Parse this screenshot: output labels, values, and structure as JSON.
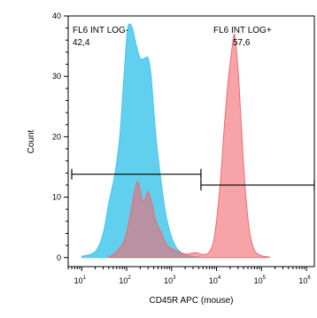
{
  "chart_data": {
    "type": "area",
    "title": "",
    "xlabel": "CD45R APC (mouse)",
    "ylabel": "Count",
    "x_scale": "log",
    "xlim": [
      5,
      1500000
    ],
    "ylim": [
      -1.5,
      40
    ],
    "y_ticks": [
      0,
      10,
      20,
      30,
      40
    ],
    "y_tick_labels": [
      "0",
      "10",
      "20",
      "30",
      "40"
    ],
    "x_ticks": [
      {
        "base": "10",
        "exp": "1",
        "value": 10
      },
      {
        "base": "10",
        "exp": "2",
        "value": 100
      },
      {
        "base": "10",
        "exp": "3",
        "value": 1000
      },
      {
        "base": "10",
        "exp": "4",
        "value": 10000
      },
      {
        "base": "10",
        "exp": "5",
        "value": 100000
      },
      {
        "base": "10",
        "exp": "6",
        "value": 1000000
      }
    ],
    "grid": false,
    "series": [
      {
        "color": "#45c8ec",
        "points": [
          [
            10,
            0.2
          ],
          [
            20,
            1.0
          ],
          [
            30,
            4.0
          ],
          [
            40,
            9.0
          ],
          [
            55,
            14.0
          ],
          [
            70,
            20.0
          ],
          [
            85,
            29.0
          ],
          [
            100,
            36.5
          ],
          [
            110,
            38.5
          ],
          [
            125,
            38.5
          ],
          [
            140,
            37.5
          ],
          [
            160,
            35.5
          ],
          [
            200,
            33.0
          ],
          [
            250,
            33.0
          ],
          [
            300,
            33.0
          ],
          [
            350,
            30.0
          ],
          [
            450,
            20.0
          ],
          [
            600,
            12.0
          ],
          [
            800,
            6.0
          ],
          [
            1200,
            2.0
          ],
          [
            2000,
            0.5
          ],
          [
            4000,
            0.1
          ]
        ]
      },
      {
        "color": "#f26870",
        "points": [
          [
            40,
            0.1
          ],
          [
            60,
            1.0
          ],
          [
            90,
            3.0
          ],
          [
            120,
            7.0
          ],
          [
            150,
            11.0
          ],
          [
            180,
            12.5
          ],
          [
            220,
            9.5
          ],
          [
            260,
            9.8
          ],
          [
            300,
            11.0
          ],
          [
            350,
            9.5
          ],
          [
            450,
            6.0
          ],
          [
            600,
            4.0
          ],
          [
            800,
            2.0
          ],
          [
            1200,
            1.2
          ],
          [
            2000,
            0.6
          ],
          [
            3500,
            0.8
          ],
          [
            5000,
            0.5
          ],
          [
            7000,
            1.0
          ],
          [
            9000,
            3.5
          ],
          [
            12000,
            12.0
          ],
          [
            15000,
            22.0
          ],
          [
            18000,
            29.0
          ],
          [
            22000,
            34.5
          ],
          [
            25000,
            37.0
          ],
          [
            28000,
            34.0
          ],
          [
            32000,
            28.0
          ],
          [
            38000,
            18.0
          ],
          [
            45000,
            10.0
          ],
          [
            55000,
            4.0
          ],
          [
            70000,
            1.2
          ],
          [
            100000,
            0.3
          ],
          [
            150000,
            0.1
          ]
        ]
      }
    ],
    "gates": [
      {
        "label": "FL6 INT LOG-",
        "value": "42,4",
        "x_range": [
          6,
          4500
        ],
        "y": 13.8
      },
      {
        "label": "FL6 INT LOG+",
        "value": "57,6",
        "x_range": [
          4500,
          1500000
        ],
        "y": 12.0
      }
    ]
  }
}
